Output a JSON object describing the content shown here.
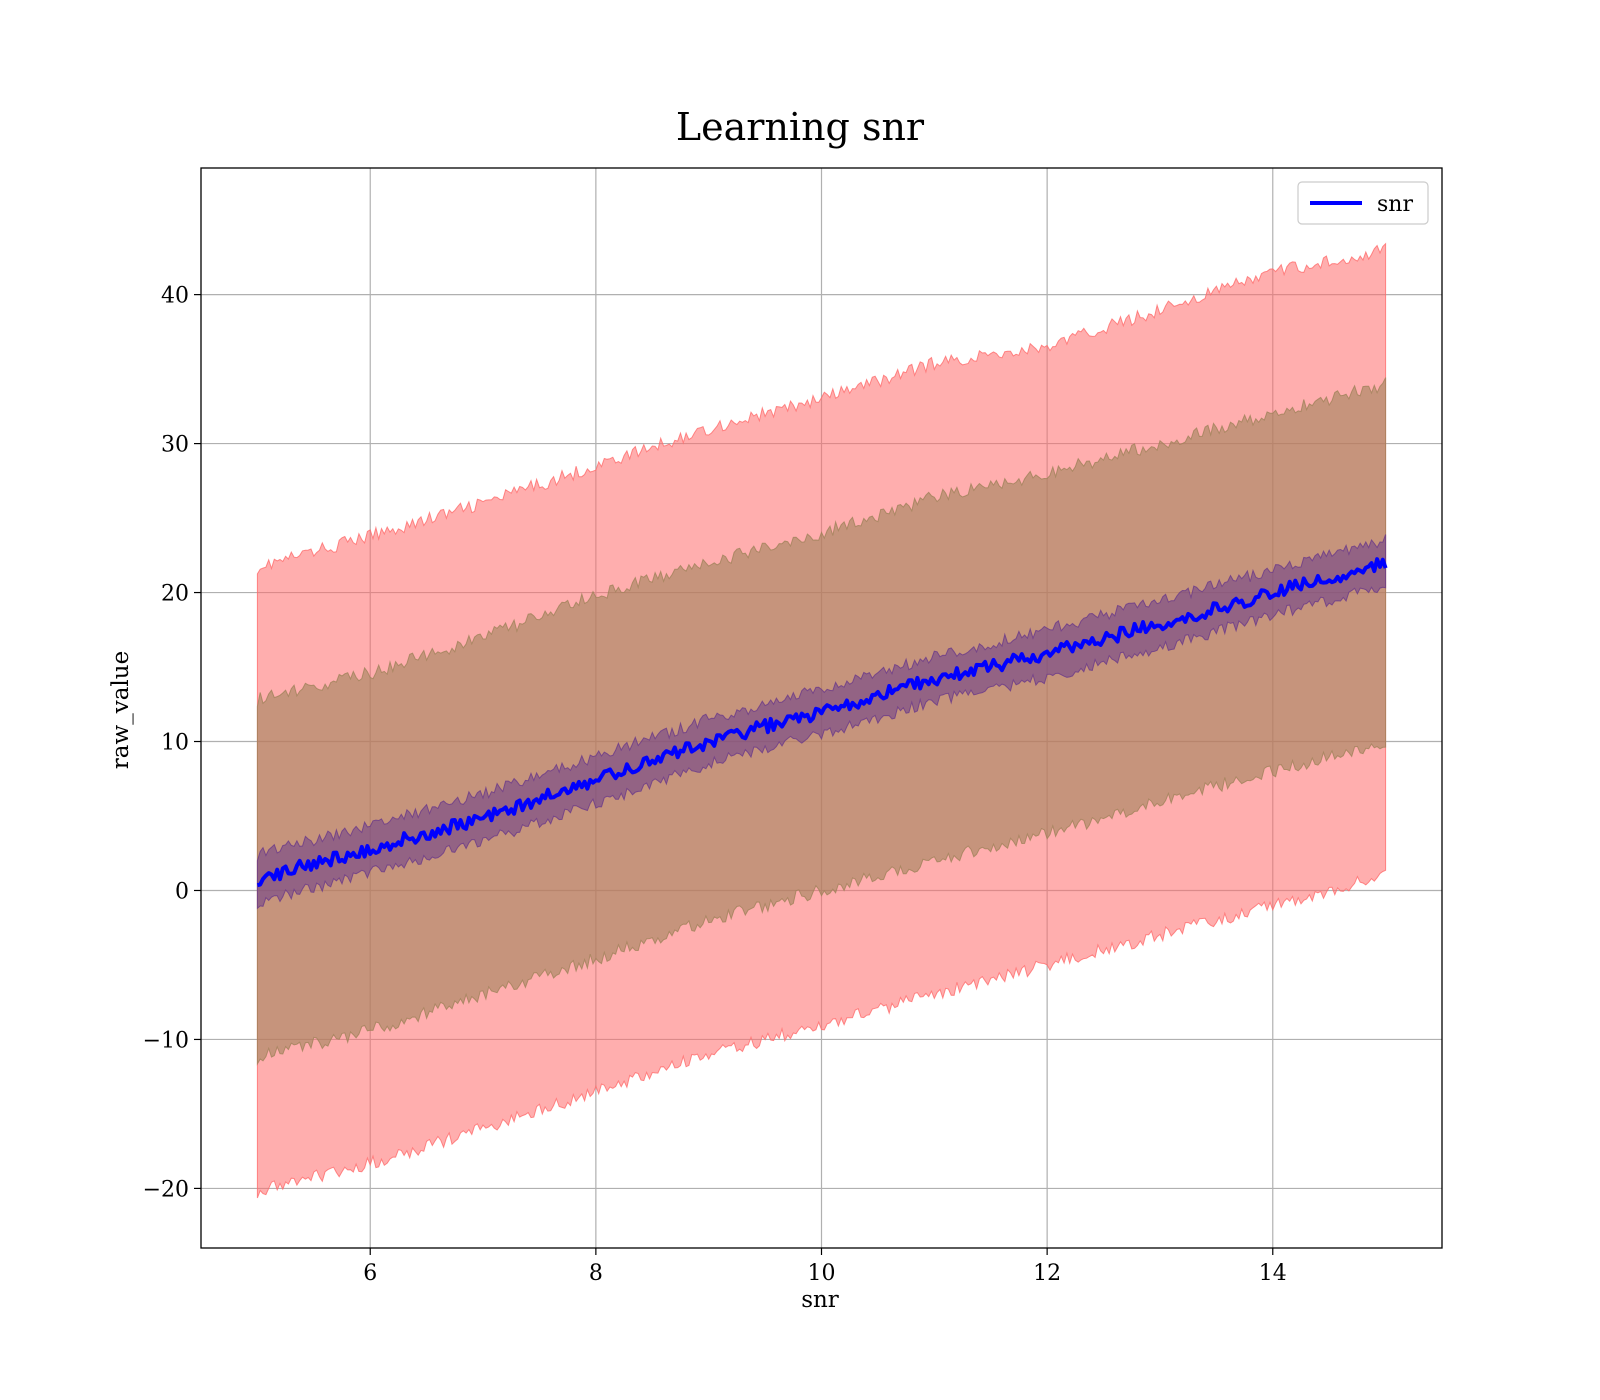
{
  "chart_data": {
    "type": "line",
    "title": "Learning snr",
    "xlabel": "snr",
    "ylabel": "raw_value",
    "xlim": [
      4.5,
      15.5
    ],
    "ylim": [
      -24,
      48.5
    ],
    "xticks": [
      6,
      8,
      10,
      12,
      14
    ],
    "yticks": [
      -20,
      -10,
      0,
      10,
      20,
      30,
      40
    ],
    "xtick_labels": [
      "6",
      "8",
      "10",
      "12",
      "14"
    ],
    "ytick_labels": [
      "−20",
      "−10",
      "0",
      "10",
      "20",
      "30",
      "40"
    ],
    "grid": true,
    "legend": {
      "position": "top-right",
      "entries": [
        "snr"
      ]
    },
    "series": [
      {
        "name": "snr",
        "color": "#0000ff",
        "x": [
          5,
          6,
          7,
          8,
          9,
          10,
          11,
          12,
          13,
          14,
          15
        ],
        "values": [
          0.8,
          2.8,
          4.9,
          7.4,
          10.0,
          12.0,
          14.2,
          15.9,
          17.9,
          20.0,
          22.0
        ]
      }
    ],
    "bands": [
      {
        "kind": "outer",
        "color": "#ff6b6b",
        "x": [
          5,
          6,
          7,
          8,
          9,
          10,
          11,
          12,
          13,
          14,
          15
        ],
        "upper": [
          21.7,
          23.8,
          26.0,
          28.5,
          31.0,
          33.0,
          35.4,
          36.5,
          39.0,
          41.5,
          43.0
        ],
        "lower": [
          -20.2,
          -18.3,
          -16.0,
          -13.5,
          -11.0,
          -9.0,
          -7.0,
          -5.0,
          -3.0,
          -1.0,
          1.0
        ]
      },
      {
        "kind": "middle",
        "color": "#a0825a",
        "x": [
          5,
          6,
          7,
          8,
          9,
          10,
          11,
          12,
          13,
          14,
          15
        ],
        "upper": [
          12.8,
          14.6,
          17.0,
          19.8,
          22.0,
          24.0,
          26.4,
          28.0,
          30.0,
          32.0,
          34.0
        ],
        "lower": [
          -11.2,
          -9.4,
          -7.0,
          -4.6,
          -2.0,
          0.0,
          2.0,
          3.8,
          6.0,
          8.0,
          10.0
        ]
      },
      {
        "kind": "inner",
        "color": "#6a3a8a",
        "x": [
          5,
          6,
          7,
          8,
          9,
          10,
          11,
          12,
          13,
          14,
          15
        ],
        "upper": [
          2.4,
          4.4,
          6.5,
          9.0,
          11.5,
          13.5,
          15.7,
          17.5,
          19.5,
          21.5,
          23.5
        ],
        "lower": [
          -0.8,
          1.2,
          3.3,
          5.8,
          8.5,
          10.5,
          12.7,
          14.3,
          16.3,
          18.5,
          20.5
        ]
      }
    ]
  }
}
